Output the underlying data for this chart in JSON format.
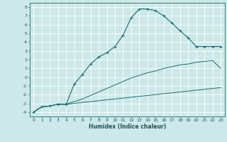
{
  "xlabel": "Humidex (Indice chaleur)",
  "bg_color": "#cce8e8",
  "grid_color": "#ffffff",
  "line_color": "#1a6e6e",
  "xlim": [
    -0.5,
    23.5
  ],
  "ylim": [
    -4.5,
    8.5
  ],
  "xticks": [
    0,
    1,
    2,
    3,
    4,
    5,
    6,
    7,
    8,
    9,
    10,
    11,
    12,
    13,
    14,
    15,
    16,
    17,
    18,
    19,
    20,
    21,
    22,
    23
  ],
  "yticks": [
    -4,
    -3,
    -2,
    -1,
    0,
    1,
    2,
    3,
    4,
    5,
    6,
    7,
    8
  ],
  "curve1_x": [
    0,
    1,
    2,
    3,
    4,
    5,
    6,
    7,
    8,
    9,
    10,
    11,
    12,
    13,
    14,
    15,
    16,
    17,
    18,
    19,
    20,
    21,
    22,
    23
  ],
  "curve1_y": [
    -4.0,
    -3.4,
    -3.3,
    -3.1,
    -3.1,
    -3.0,
    -2.9,
    -2.8,
    -2.7,
    -2.6,
    -2.5,
    -2.4,
    -2.3,
    -2.2,
    -2.1,
    -2.0,
    -1.9,
    -1.8,
    -1.7,
    -1.6,
    -1.5,
    -1.4,
    -1.3,
    -1.2
  ],
  "curve2_x": [
    0,
    1,
    2,
    3,
    4,
    5,
    6,
    7,
    8,
    9,
    10,
    11,
    12,
    13,
    14,
    15,
    16,
    17,
    18,
    19,
    20,
    21,
    22,
    23
  ],
  "curve2_y": [
    -4.0,
    -3.4,
    -3.3,
    -3.1,
    -3.1,
    -2.8,
    -2.5,
    -2.1,
    -1.7,
    -1.3,
    -0.9,
    -0.5,
    -0.1,
    0.2,
    0.5,
    0.7,
    1.0,
    1.2,
    1.4,
    1.5,
    1.7,
    1.8,
    1.9,
    1.0
  ],
  "curve3_x": [
    0,
    1,
    2,
    3,
    4,
    5,
    6,
    7,
    8,
    9,
    10,
    11,
    12,
    13,
    14,
    15,
    16,
    17,
    18,
    19,
    20,
    21,
    22,
    23
  ],
  "curve3_y": [
    -4.0,
    -3.4,
    -3.3,
    -3.1,
    -3.1,
    -0.8,
    0.3,
    1.5,
    2.3,
    2.8,
    3.5,
    4.8,
    6.8,
    7.8,
    7.8,
    7.6,
    7.0,
    6.2,
    5.3,
    4.5,
    3.5,
    3.5,
    3.5,
    3.5
  ],
  "curve3_marker_x": [
    0,
    1,
    2,
    3,
    4,
    5,
    6,
    7,
    8,
    9,
    10,
    11,
    12,
    13,
    14,
    15,
    16,
    17,
    18,
    19,
    20,
    21,
    22,
    23
  ],
  "curve3_marker_y": [
    -4.0,
    -3.4,
    -3.3,
    -3.1,
    -3.1,
    -0.8,
    0.3,
    1.5,
    2.3,
    2.8,
    3.5,
    4.8,
    6.8,
    7.8,
    7.8,
    7.6,
    7.0,
    6.2,
    5.3,
    4.5,
    3.5,
    3.5,
    3.5,
    3.5
  ]
}
